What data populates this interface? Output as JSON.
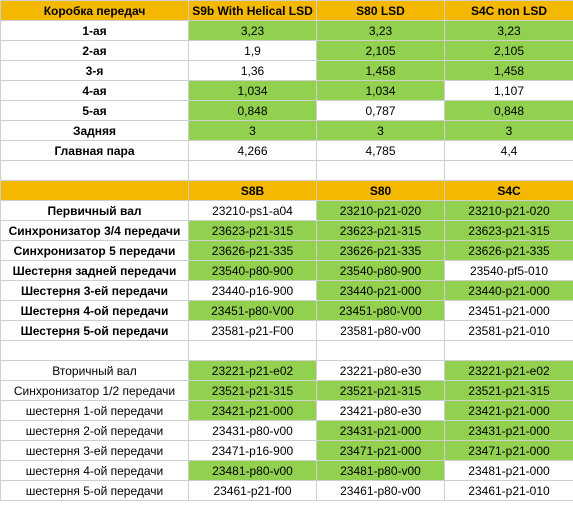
{
  "table1": {
    "header": [
      "Коробка передач",
      "S9b With Helical LSD",
      "S80 LSD",
      "S4C non LSD"
    ],
    "rows": [
      {
        "label": "1-ая",
        "values": [
          "3,23",
          "3,23",
          "3,23"
        ],
        "highlight": [
          true,
          true,
          true
        ]
      },
      {
        "label": "2-ая",
        "values": [
          "1,9",
          "2,105",
          "2,105"
        ],
        "highlight": [
          false,
          true,
          true
        ]
      },
      {
        "label": "3-я",
        "values": [
          "1,36",
          "1,458",
          "1,458"
        ],
        "highlight": [
          false,
          true,
          true
        ]
      },
      {
        "label": "4-ая",
        "values": [
          "1,034",
          "1,034",
          "1,107"
        ],
        "highlight": [
          true,
          true,
          false
        ]
      },
      {
        "label": "5-ая",
        "values": [
          "0,848",
          "0,787",
          "0,848"
        ],
        "highlight": [
          true,
          false,
          true
        ]
      },
      {
        "label": "Задняя",
        "values": [
          "3",
          "3",
          "3"
        ],
        "highlight": [
          true,
          true,
          true
        ]
      },
      {
        "label": "Главная пара",
        "values": [
          "4,266",
          "4,785",
          "4,4"
        ],
        "highlight": [
          false,
          false,
          false
        ]
      }
    ]
  },
  "table2": {
    "header": [
      "",
      "S8B",
      "S80",
      "S4C"
    ],
    "rows": [
      {
        "label": "Первичный вал",
        "values": [
          "23210-ps1-a04",
          "23210-p21-020",
          "23210-p21-020"
        ],
        "highlight": [
          false,
          true,
          true
        ]
      },
      {
        "label": "Синхронизатор 3/4 передачи",
        "values": [
          "23623-p21-315",
          "23623-p21-315",
          "23623-p21-315"
        ],
        "highlight": [
          true,
          true,
          true
        ]
      },
      {
        "label": "Синхронизатор 5 передачи",
        "values": [
          "23626-p21-335",
          "23626-p21-335",
          "23626-p21-335"
        ],
        "highlight": [
          true,
          true,
          true
        ]
      },
      {
        "label": "Шестерня задней передачи",
        "values": [
          "23540-p80-900",
          "23540-p80-900",
          "23540-pf5-010"
        ],
        "highlight": [
          true,
          true,
          false
        ]
      },
      {
        "label": "Шестерня 3-ей передачи",
        "values": [
          "23440-p16-900",
          "23440-p21-000",
          "23440-p21-000"
        ],
        "highlight": [
          false,
          true,
          true
        ]
      },
      {
        "label": "Шестерня 4-ой передачи",
        "values": [
          "23451-p80-V00",
          "23451-p80-V00",
          "23451-p21-000"
        ],
        "highlight": [
          true,
          true,
          false
        ]
      },
      {
        "label": "Шестерня 5-ой передачи",
        "values": [
          "23581-p21-F00",
          "23581-p80-v00",
          "23581-p21-010"
        ],
        "highlight": [
          false,
          false,
          false
        ]
      }
    ]
  },
  "table3": {
    "rows": [
      {
        "label": "Вторичный вал",
        "values": [
          "23221-p21-e02",
          "23221-p80-e30",
          "23221-p21-e02"
        ],
        "highlight": [
          true,
          false,
          true
        ]
      },
      {
        "label": "Синхронизатор 1/2 передачи",
        "values": [
          "23521-p21-315",
          "23521-p21-315",
          "23521-p21-315"
        ],
        "highlight": [
          true,
          true,
          true
        ]
      },
      {
        "label": "шестерня 1-ой передачи",
        "values": [
          "23421-p21-000",
          "23421-p80-e30",
          "23421-p21-000"
        ],
        "highlight": [
          true,
          false,
          true
        ]
      },
      {
        "label": "шестерня 2-ой передачи",
        "values": [
          "23431-p80-v00",
          "23431-p21-000",
          "23431-p21-000"
        ],
        "highlight": [
          false,
          true,
          true
        ]
      },
      {
        "label": "шестерня 3-ей передачи",
        "values": [
          "23471-p16-900",
          "23471-p21-000",
          "23471-p21-000"
        ],
        "highlight": [
          false,
          true,
          true
        ]
      },
      {
        "label": "шестерня 4-ой передачи",
        "values": [
          "23481-p80-v00",
          "23481-p80-v00",
          "23481-p21-000"
        ],
        "highlight": [
          true,
          true,
          false
        ]
      },
      {
        "label": "шестерня 5-ой передачи",
        "values": [
          "23461-p21-f00",
          "23461-p80-v00",
          "23461-p21-010"
        ],
        "highlight": [
          false,
          false,
          false
        ]
      }
    ]
  },
  "colors": {
    "header_bg": "#f5b800",
    "highlight_bg": "#92d050",
    "default_bg": "#ffffff"
  }
}
